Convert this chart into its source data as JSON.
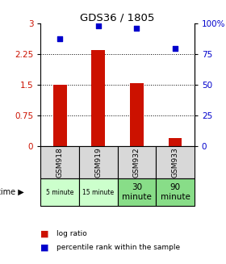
{
  "title": "GDS36 / 1805",
  "samples": [
    "GSM918",
    "GSM919",
    "GSM932",
    "GSM933"
  ],
  "time_labels": [
    "5 minute",
    "15 minute",
    "30\nminute",
    "90\nminute"
  ],
  "time_colors": [
    "#ccffcc",
    "#ccffcc",
    "#88dd88",
    "#88dd88"
  ],
  "log_ratios": [
    1.5,
    2.35,
    1.55,
    0.2
  ],
  "percentile_ranks": [
    88,
    98,
    96,
    80
  ],
  "bar_color": "#cc1100",
  "dot_color": "#0000cc",
  "left_yticks": [
    0,
    0.75,
    1.5,
    2.25,
    3
  ],
  "left_ylabels": [
    "0",
    "0.75",
    "1.5",
    "2.25",
    "3"
  ],
  "right_yticks": [
    0,
    25,
    50,
    75,
    100
  ],
  "right_ylabels": [
    "0",
    "25",
    "50",
    "75",
    "100%"
  ],
  "ylim": [
    0,
    3
  ],
  "ylabel_left_color": "#cc1100",
  "ylabel_right_color": "#0000cc",
  "legend_log_ratio": "log ratio",
  "legend_percentile": "percentile rank within the sample",
  "time_label": "time ▶",
  "gsm_bg": "#d8d8d8",
  "bar_width": 0.35
}
